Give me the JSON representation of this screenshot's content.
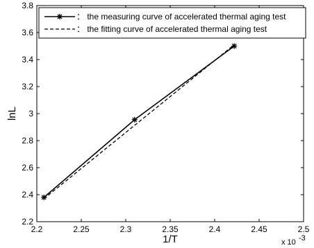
{
  "chart_data": {
    "type": "line",
    "xlabel": "1/T",
    "ylabel": "lnL",
    "xlim": [
      2.2,
      2.5
    ],
    "ylim": [
      2.2,
      3.8
    ],
    "x_exponent_label": "x 10",
    "x_exponent_power": "-3",
    "xticks": [
      2.2,
      2.25,
      2.3,
      2.35,
      2.4,
      2.45,
      2.5
    ],
    "xtick_labels": [
      "2.2",
      "2.25",
      "2.3",
      "2.35",
      "2.4",
      "2.45",
      "2.5"
    ],
    "yticks": [
      2.2,
      2.4,
      2.6,
      2.8,
      3.0,
      3.2,
      3.4,
      3.6,
      3.8
    ],
    "ytick_labels": [
      "2.2",
      "2.4",
      "2.6",
      "2.8",
      "3",
      "3.2",
      "3.4",
      "3.6",
      "3.8"
    ],
    "grid": false,
    "legend_position": "top-left",
    "series": [
      {
        "name": "： the measuring curve of  accelerated thermal aging test",
        "style": "solid-star",
        "color": "#000000",
        "x": [
          2.208,
          2.31,
          2.422
        ],
        "y": [
          2.38,
          2.955,
          3.5
        ]
      },
      {
        "name": "： the fitting curve of  accelerated thermal aging test",
        "style": "dashed",
        "color": "#000000",
        "x": [
          2.208,
          2.422
        ],
        "y": [
          2.37,
          3.51
        ]
      }
    ]
  }
}
